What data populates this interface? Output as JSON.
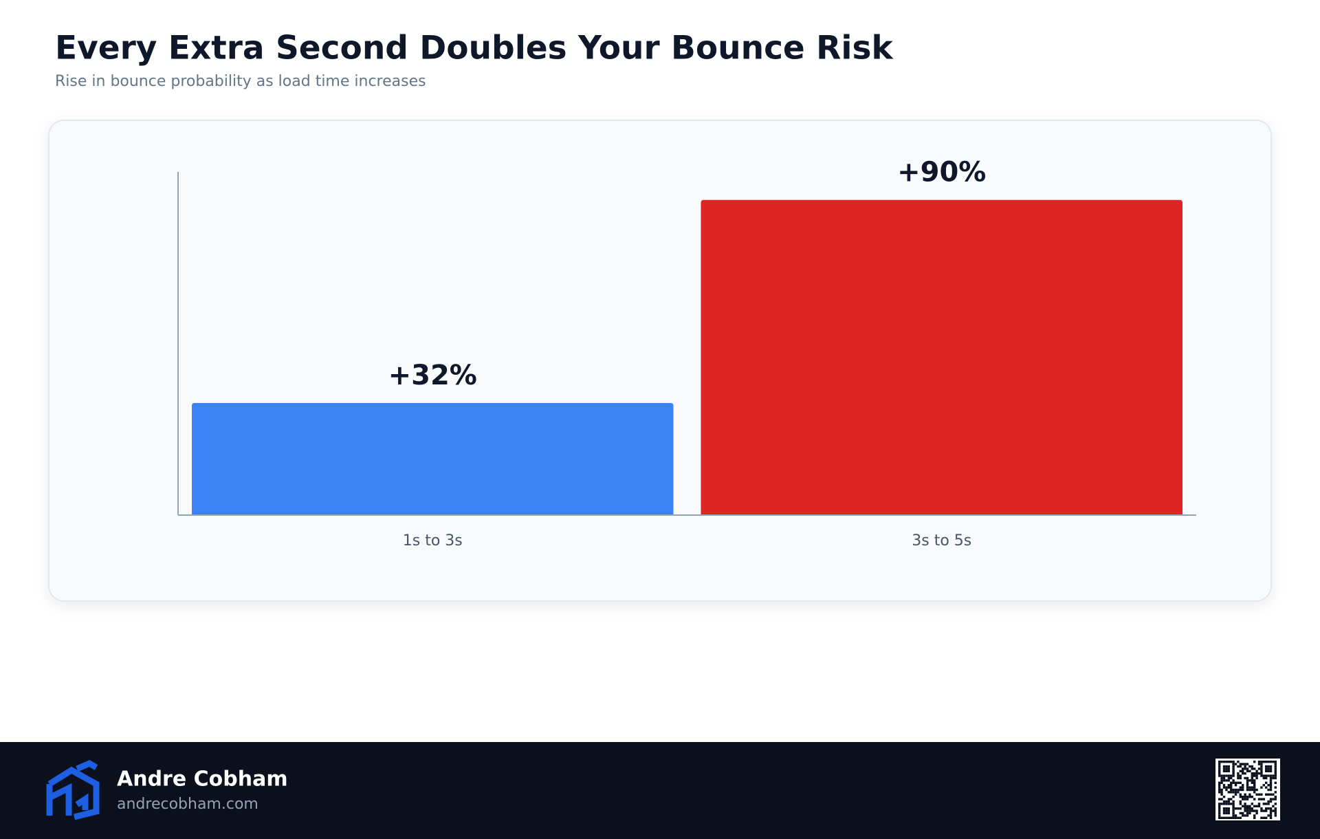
{
  "chart_data": {
    "type": "bar",
    "title": "Every Extra Second Doubles Your Bounce Risk",
    "subtitle": "Rise in bounce probability as load time increases",
    "categories": [
      "1s to 3s",
      "3s to 5s"
    ],
    "values": [
      32,
      90
    ],
    "value_labels": [
      "+32%",
      "+90%"
    ],
    "colors": [
      "#3b82f6",
      "#dc2626"
    ],
    "ylim": [
      0,
      98
    ]
  },
  "footer": {
    "name": "Andre Cobham",
    "url": "andrecobham.com"
  }
}
